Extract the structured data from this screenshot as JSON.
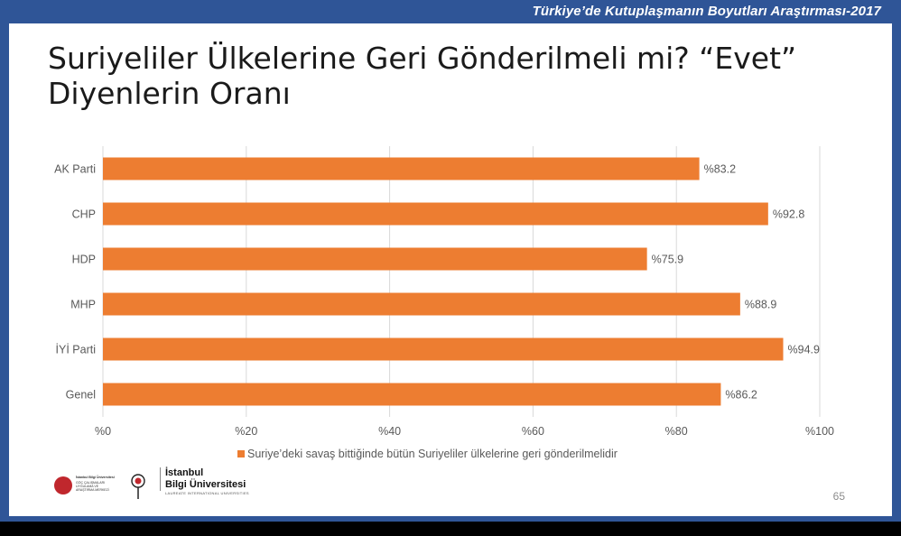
{
  "header": {
    "survey_title": "Türkiye’de Kutuplaşmanın Boyutları Araştırması-2017"
  },
  "slide": {
    "title_line1": "Suriyeliler Ülkelerine Geri Gönderilmeli mi? “Evet”",
    "title_line2": "Diyenlerin Oranı",
    "page_number": "65"
  },
  "logos": {
    "left_lines": [
      "İstanbul Bilgi Üniversitesi",
      "GÖÇ ÇALIŞMALARI",
      "UYGULAMA VE",
      "ARAŞTIRMA MERKEZİ"
    ],
    "university_line1": "İstanbul",
    "university_line2": "Bilgi Üniversitesi",
    "laureate": "LAUREATE INTERNATIONAL UNIVERSITIES"
  },
  "colors": {
    "frame": "#2f5597",
    "bar": "#ed7d31",
    "axis_text": "#595959",
    "grid": "#d9d9d9"
  },
  "chart_data": {
    "type": "bar",
    "orientation": "horizontal",
    "categories": [
      "AK Parti",
      "CHP",
      "HDP",
      "MHP",
      "İYİ Parti",
      "Genel"
    ],
    "series": [
      {
        "name": "Suriye’deki savaş bittiğinde bütün Suriyeliler ülkelerine geri gönderilmelidir",
        "values": [
          83.2,
          92.8,
          75.9,
          88.9,
          94.9,
          86.2
        ],
        "labels": [
          "%83.2",
          "%92.8",
          "%75.9",
          "%88.9",
          "%94.9",
          "%86.2"
        ]
      }
    ],
    "xlim": [
      0,
      100
    ],
    "xticks": [
      0,
      20,
      40,
      60,
      80,
      100
    ],
    "xtick_labels": [
      "%0",
      "%20",
      "%40",
      "%60",
      "%80",
      "%100"
    ],
    "grid": true,
    "legend": "bottom"
  }
}
